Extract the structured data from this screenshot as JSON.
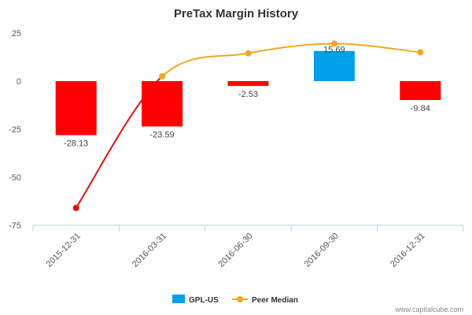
{
  "chart_data": {
    "type": "bar",
    "title": "PreTax Margin History",
    "categories": [
      "2015-12-31",
      "2016-03-31",
      "2016-06-30",
      "2016-09-30",
      "2016-12-31"
    ],
    "series": [
      {
        "name": "GPL-US",
        "type": "bar",
        "values": [
          -28.13,
          -23.59,
          -2.53,
          15.69,
          -9.84
        ]
      },
      {
        "name": "Peer Median",
        "type": "line",
        "values": [
          -66,
          2.5,
          14.5,
          19.5,
          15
        ]
      }
    ],
    "data_labels": [
      "-28.13",
      "-23.59",
      "-2.53",
      "15.69",
      "-9.84"
    ],
    "yticks": [
      25,
      0,
      -25,
      -50,
      -75
    ],
    "ylim": [
      -75,
      25
    ],
    "legend": {
      "position": "bottom-center",
      "items": [
        "GPL-US",
        "Peer Median"
      ]
    },
    "colors": {
      "positive": "#00a0e8",
      "negative": "#ff0000",
      "peer_line": "#f5a623",
      "peer_line_low": "#e01010",
      "legend_bar": "#00a0e8"
    },
    "grid": false
  },
  "footer": {
    "credit": "www.capitalcube.com"
  }
}
